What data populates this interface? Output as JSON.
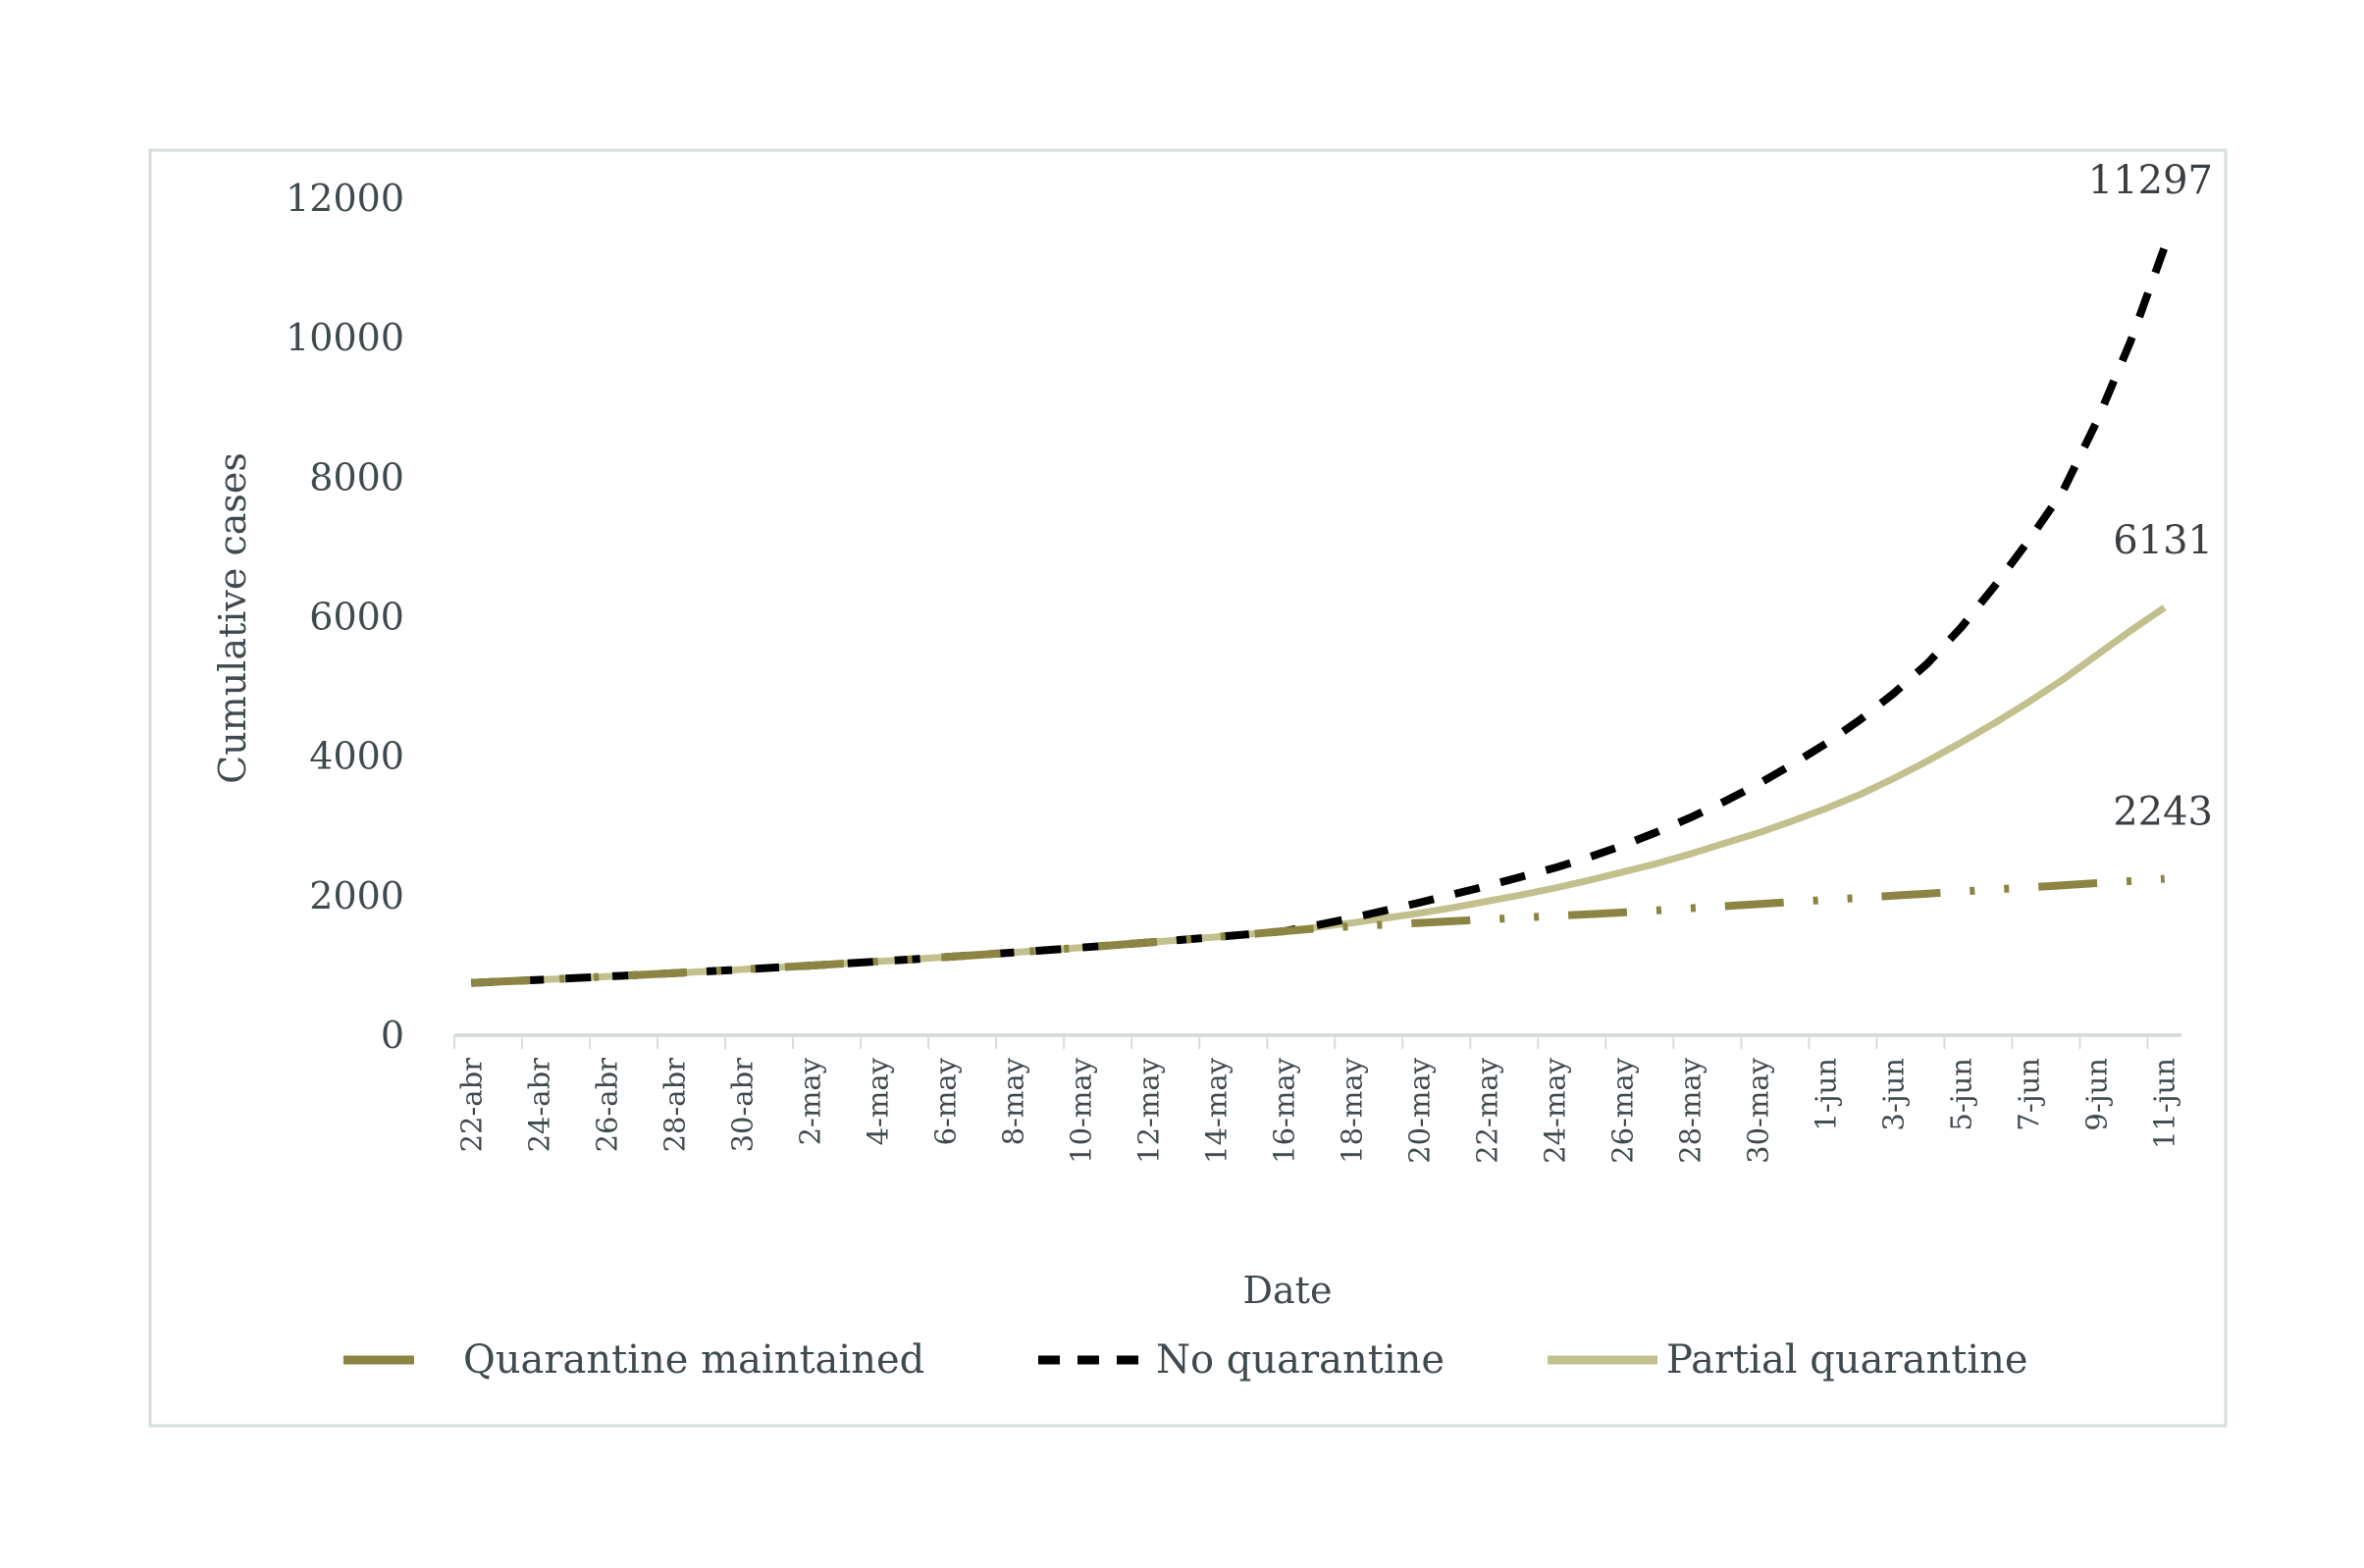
{
  "chart_data": {
    "type": "line",
    "title": "",
    "xlabel": "Date",
    "ylabel": "Cumulative cases",
    "ylim": [
      0,
      12000
    ],
    "yticks": [
      0,
      2000,
      4000,
      6000,
      8000,
      10000,
      12000
    ],
    "grid": false,
    "legend_position": "bottom",
    "x": [
      "22-abr",
      "23-abr",
      "24-abr",
      "25-abr",
      "26-abr",
      "27-abr",
      "28-abr",
      "29-abr",
      "30-abr",
      "1-may",
      "2-may",
      "3-may",
      "4-may",
      "5-may",
      "6-may",
      "7-may",
      "8-may",
      "9-may",
      "10-may",
      "11-may",
      "12-may",
      "13-may",
      "14-may",
      "15-may",
      "16-may",
      "17-may",
      "18-may",
      "19-may",
      "20-may",
      "21-may",
      "22-may",
      "23-may",
      "24-may",
      "25-may",
      "26-may",
      "27-may",
      "28-may",
      "29-may",
      "30-may",
      "31-may",
      "1-jun",
      "2-jun",
      "3-jun",
      "4-jun",
      "5-jun",
      "6-jun",
      "7-jun",
      "8-jun",
      "9-jun",
      "10-jun",
      "11-jun"
    ],
    "xtick_labels": [
      "22-abr",
      "24-abr",
      "26-abr",
      "28-abr",
      "30-abr",
      "2-may",
      "4-may",
      "6-may",
      "8-may",
      "10-may",
      "12-may",
      "14-may",
      "16-may",
      "18-may",
      "20-may",
      "22-may",
      "24-may",
      "26-may",
      "28-may",
      "30-may",
      "1-jun",
      "3-jun",
      "5-jun",
      "7-jun",
      "9-jun",
      "11-jun"
    ],
    "series": [
      {
        "name": "Quarantine maintained",
        "color": "#8c8442",
        "style": "long-dash-dot-dot",
        "end_label": "2243",
        "values": [
          750,
          772,
          794,
          817,
          841,
          865,
          890,
          916,
          943,
          970,
          998,
          1027,
          1057,
          1088,
          1120,
          1152,
          1186,
          1220,
          1256,
          1292,
          1330,
          1368,
          1408,
          1449,
          1491,
          1530,
          1560,
          1585,
          1610,
          1635,
          1660,
          1685,
          1710,
          1735,
          1760,
          1790,
          1820,
          1850,
          1880,
          1910,
          1940,
          1970,
          2000,
          2030,
          2060,
          2090,
          2120,
          2150,
          2180,
          2210,
          2243
        ]
      },
      {
        "name": "No quarantine",
        "color": "#000000",
        "style": "dash",
        "end_label": "11297",
        "values": [
          750,
          772,
          794,
          817,
          841,
          865,
          890,
          916,
          943,
          970,
          998,
          1027,
          1057,
          1088,
          1120,
          1152,
          1186,
          1220,
          1256,
          1292,
          1330,
          1368,
          1408,
          1449,
          1491,
          1580,
          1680,
          1790,
          1900,
          2020,
          2140,
          2270,
          2400,
          2550,
          2720,
          2910,
          3120,
          3350,
          3600,
          3880,
          4180,
          4520,
          4900,
          5330,
          5850,
          6450,
          7100,
          7800,
          8800,
          9950,
          11297
        ]
      },
      {
        "name": "Partial quarantine",
        "color": "#c2c08c",
        "style": "solid",
        "end_label": "6131",
        "values": [
          750,
          772,
          794,
          817,
          841,
          865,
          890,
          916,
          943,
          970,
          998,
          1027,
          1057,
          1088,
          1120,
          1152,
          1186,
          1220,
          1256,
          1292,
          1330,
          1368,
          1408,
          1449,
          1491,
          1550,
          1610,
          1680,
          1750,
          1830,
          1920,
          2010,
          2110,
          2220,
          2340,
          2460,
          2600,
          2750,
          2900,
          3070,
          3250,
          3450,
          3680,
          3930,
          4200,
          4480,
          4780,
          5100,
          5450,
          5800,
          6131
        ]
      }
    ]
  }
}
